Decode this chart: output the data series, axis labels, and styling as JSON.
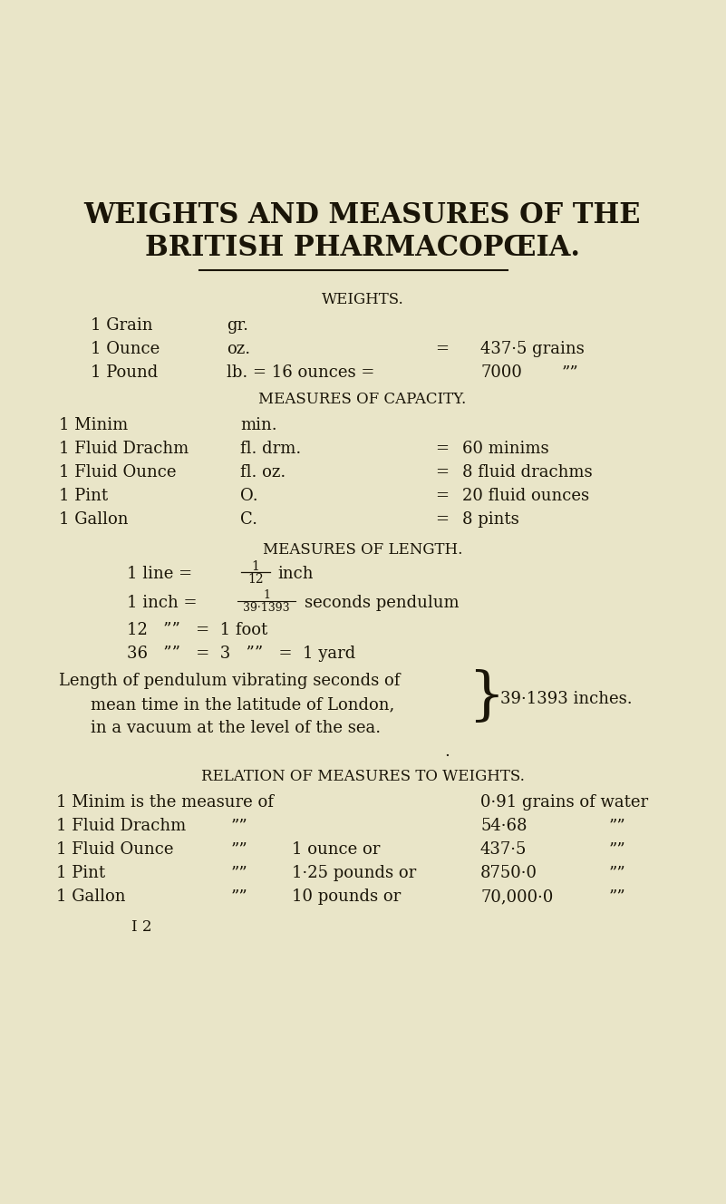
{
  "bg_color": "#e9e5c8",
  "text_color": "#1a1508",
  "title_line1": "WEIGHTS AND MEASURES OF THE",
  "title_line2": "BRITISH PHARMACOPŒIA.",
  "section_weights": "WEIGHTS.",
  "section_capacity": "MEASURES OF CAPACITY.",
  "section_length": "MEASURES OF LENGTH.",
  "section_relation": "RELATION OF MEASURES TO WEIGHTS.",
  "footer": "I 2"
}
